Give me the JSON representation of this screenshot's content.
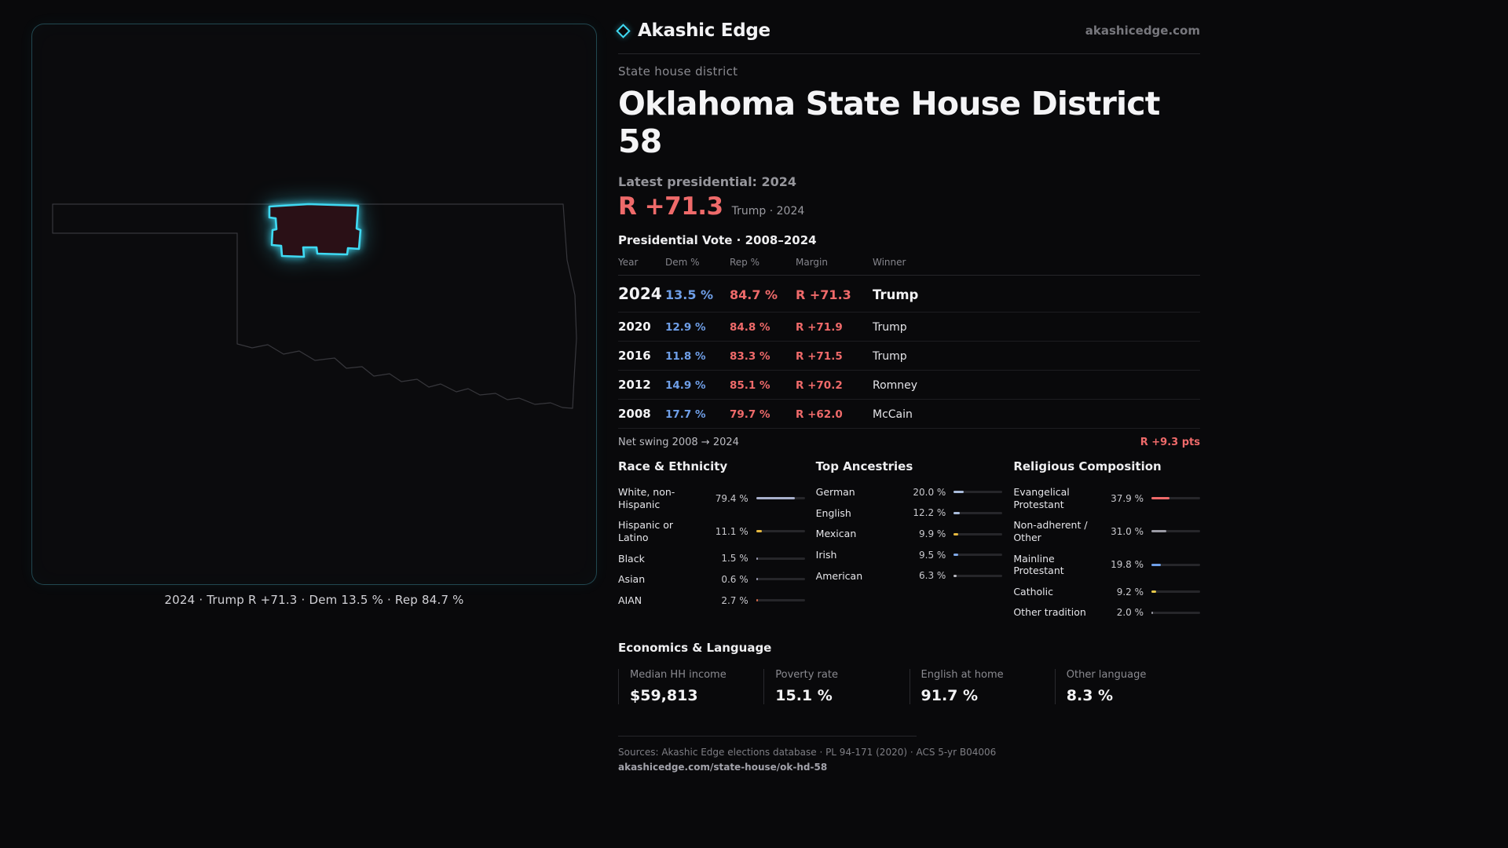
{
  "brand": {
    "name": "Akashic Edge",
    "domain": "akashicedge.com"
  },
  "page": {
    "kicker": "State house district",
    "title": "Oklahoma State House District 58"
  },
  "map": {
    "caption": "2024 · Trump R +71.3 · Dem 13.5 % · Rep 84.7 %"
  },
  "latest": {
    "label": "Latest presidential: 2024",
    "value": "R +71.3",
    "note": "Trump · 2024"
  },
  "vote_table": {
    "title": "Presidential Vote · 2008–2024",
    "columns": [
      "Year",
      "Dem %",
      "Rep %",
      "Margin",
      "Winner"
    ],
    "rows": [
      {
        "year": "2024",
        "dem": "13.5 %",
        "rep": "84.7 %",
        "margin": "R +71.3",
        "winner": "Trump",
        "emphasis": true
      },
      {
        "year": "2020",
        "dem": "12.9 %",
        "rep": "84.8 %",
        "margin": "R +71.9",
        "winner": "Trump",
        "emphasis": false
      },
      {
        "year": "2016",
        "dem": "11.8 %",
        "rep": "83.3 %",
        "margin": "R +71.5",
        "winner": "Trump",
        "emphasis": false
      },
      {
        "year": "2012",
        "dem": "14.9 %",
        "rep": "85.1 %",
        "margin": "R +70.2",
        "winner": "Romney",
        "emphasis": false
      },
      {
        "year": "2008",
        "dem": "17.7 %",
        "rep": "79.7 %",
        "margin": "R +62.0",
        "winner": "McCain",
        "emphasis": false
      }
    ]
  },
  "swing": {
    "label": "Net swing 2008 → 2024",
    "value": "R +9.3 pts"
  },
  "demographics": [
    {
      "title": "Race & Ethnicity",
      "rows": [
        {
          "label": "White, non-Hispanic",
          "value": "79.4 %",
          "pct": 79.4,
          "color": "#a8b0cc"
        },
        {
          "label": "Hispanic or Latino",
          "value": "11.1 %",
          "pct": 11.1,
          "color": "#e6b93f"
        },
        {
          "label": "Black",
          "value": "1.5 %",
          "pct": 1.5,
          "color": "#9a9ab0"
        },
        {
          "label": "Asian",
          "value": "0.6 %",
          "pct": 0.6,
          "color": "#9a9ab0"
        },
        {
          "label": "AIAN",
          "value": "2.7 %",
          "pct": 2.7,
          "color": "#d96a4a"
        }
      ]
    },
    {
      "title": "Top Ancestries",
      "rows": [
        {
          "label": "German",
          "value": "20.0 %",
          "pct": 20.0,
          "color": "#a9bcdc"
        },
        {
          "label": "English",
          "value": "12.2 %",
          "pct": 12.2,
          "color": "#a9bcdc"
        },
        {
          "label": "Mexican",
          "value": "9.9 %",
          "pct": 9.9,
          "color": "#e6b93f"
        },
        {
          "label": "Irish",
          "value": "9.5 %",
          "pct": 9.5,
          "color": "#7fa8e8"
        },
        {
          "label": "American",
          "value": "6.3 %",
          "pct": 6.3,
          "color": "#b8b8c0"
        }
      ]
    },
    {
      "title": "Religious Composition",
      "rows": [
        {
          "label": "Evangelical Protestant",
          "value": "37.9 %",
          "pct": 37.9,
          "color": "#ef6a6a"
        },
        {
          "label": "Non-adherent / Other",
          "value": "31.0 %",
          "pct": 31.0,
          "color": "#9a9aa4"
        },
        {
          "label": "Mainline Protestant",
          "value": "19.8 %",
          "pct": 19.8,
          "color": "#6f9fe8"
        },
        {
          "label": "Catholic",
          "value": "9.2 %",
          "pct": 9.2,
          "color": "#e6c84a"
        },
        {
          "label": "Other tradition",
          "value": "2.0 %",
          "pct": 2.0,
          "color": "#9a9aa4"
        }
      ]
    }
  ],
  "economics": {
    "title": "Economics & Language",
    "stats": [
      {
        "label": "Median HH income",
        "value": "$59,813"
      },
      {
        "label": "Poverty rate",
        "value": "15.1 %"
      },
      {
        "label": "English at home",
        "value": "91.7 %"
      },
      {
        "label": "Other language",
        "value": "8.3 %"
      }
    ]
  },
  "footer": {
    "sources": "Sources: Akashic Edge elections database · PL 94-171 (2020) · ACS 5-yr B04006",
    "permalink": "akashicedge.com/state-house/ok-hd-58"
  },
  "colors": {
    "rep": "#ef6a6a",
    "dem": "#6f9fe8",
    "accent": "#3fd9f2"
  }
}
